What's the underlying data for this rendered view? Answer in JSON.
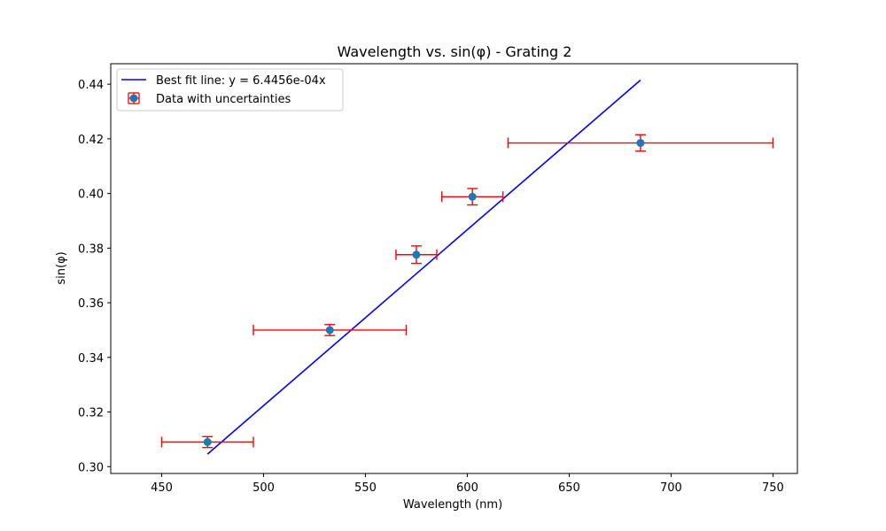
{
  "chart_data": {
    "type": "scatter",
    "title": "Wavelength vs. sin(φ) - Grating 2",
    "xlabel": "Wavelength (nm)",
    "ylabel": "sin(φ)",
    "xlim": [
      425,
      762
    ],
    "ylim": [
      0.2975,
      0.4475
    ],
    "x_ticks": [
      450,
      500,
      550,
      600,
      650,
      700,
      750
    ],
    "y_ticks": [
      0.3,
      0.32,
      0.34,
      0.36,
      0.38,
      0.4,
      0.42,
      0.44
    ],
    "grid": false,
    "legend_position": "upper left",
    "series": [
      {
        "name": "Best fit line: y = 6.4456e-04x",
        "kind": "line",
        "color": "#0000ff",
        "x": [
          472.5,
          685.0
        ],
        "y": [
          0.3046,
          0.4415
        ]
      },
      {
        "name": "Data with uncertainties",
        "kind": "errorbar",
        "marker_color": "#1f77b4",
        "errorbar_color": "#ff0000",
        "points": [
          {
            "x": 472.5,
            "y": 0.309,
            "xerr": 22.5,
            "yerr": 0.002
          },
          {
            "x": 532.5,
            "y": 0.35,
            "xerr": 37.5,
            "yerr": 0.002
          },
          {
            "x": 575.0,
            "y": 0.3776,
            "xerr": 10.0,
            "yerr": 0.0032
          },
          {
            "x": 602.5,
            "y": 0.3988,
            "xerr": 15.0,
            "yerr": 0.003
          },
          {
            "x": 685.0,
            "y": 0.4185,
            "xerr": 65.0,
            "yerr": 0.003
          }
        ]
      }
    ]
  }
}
